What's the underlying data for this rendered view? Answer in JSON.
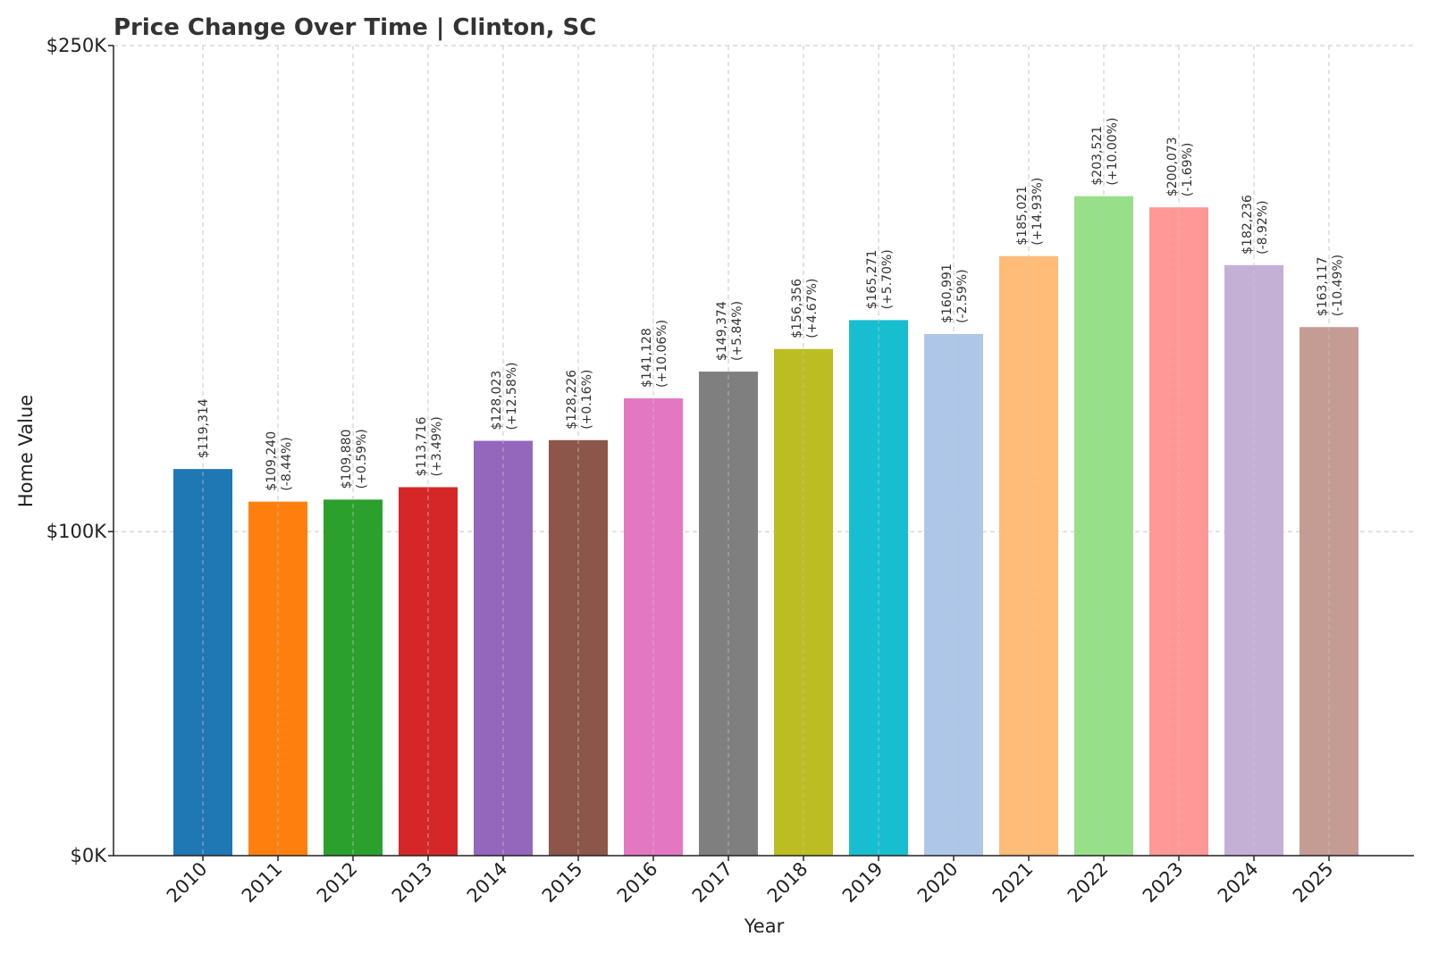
{
  "chart_data": {
    "type": "bar",
    "title": "Price Change Over Time | Clinton, SC",
    "xlabel": "Year",
    "ylabel": "Home Value",
    "ylim": [
      0,
      250000
    ],
    "y_tick_values": [
      0,
      100000,
      250000
    ],
    "y_tick_labels": [
      "$0K",
      "$100K",
      "$250K"
    ],
    "grid": true,
    "legend": "none",
    "categories": [
      "2010",
      "2011",
      "2012",
      "2013",
      "2014",
      "2015",
      "2016",
      "2017",
      "2018",
      "2019",
      "2020",
      "2021",
      "2022",
      "2023",
      "2024",
      "2025"
    ],
    "values": [
      119314,
      109240,
      109880,
      113716,
      128023,
      128226,
      141128,
      149374,
      156356,
      165271,
      160991,
      185021,
      203521,
      200073,
      182236,
      163117
    ],
    "value_labels": [
      "$119,314",
      "$109,240",
      "$109,880",
      "$113,716",
      "$128,023",
      "$128,226",
      "$141,128",
      "$149,374",
      "$156,356",
      "$165,271",
      "$160,991",
      "$185,021",
      "$203,521",
      "$200,073",
      "$182,236",
      "$163,117"
    ],
    "change_labels": [
      "",
      "(-8.44%)",
      "(+0.59%)",
      "(+3.49%)",
      "(+12.58%)",
      "(+0.16%)",
      "(+10.06%)",
      "(+5.84%)",
      "(+4.67%)",
      "(+5.70%)",
      "(-2.59%)",
      "(+14.93%)",
      "(+10.00%)",
      "(-1.69%)",
      "(-8.92%)",
      "(-10.49%)"
    ],
    "colors": [
      "#1f77b4",
      "#ff7f0e",
      "#2ca02c",
      "#d62728",
      "#9467bd",
      "#8c564b",
      "#e377c2",
      "#7f7f7f",
      "#bcbd22",
      "#17becf",
      "#aec7e8",
      "#ffbb78",
      "#98df8a",
      "#ff9896",
      "#c5b0d5",
      "#c49c94"
    ]
  }
}
